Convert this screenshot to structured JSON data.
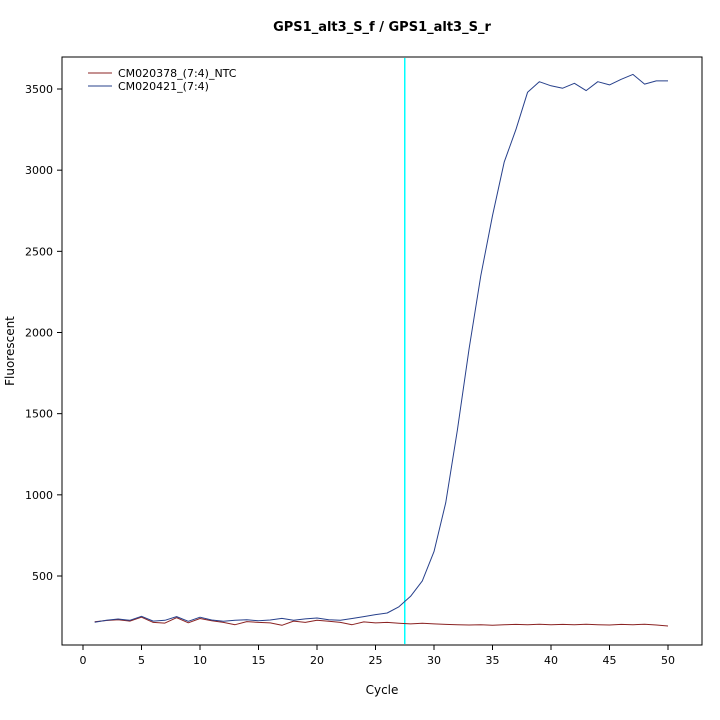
{
  "chart_data": {
    "type": "line",
    "title": "GPS1_alt3_S_f / GPS1_alt3_S_r",
    "xlabel": "Cycle",
    "ylabel": "Fluorescent",
    "xlim": [
      0,
      50
    ],
    "ylim": [
      150,
      3700
    ],
    "x_ticks": [
      0,
      5,
      10,
      15,
      20,
      25,
      30,
      35,
      40,
      45,
      50
    ],
    "y_ticks": [
      500,
      1000,
      1500,
      2000,
      2500,
      3000,
      3500
    ],
    "grid": false,
    "legend_position": "top-left",
    "background_color": "#ffffff",
    "frame_color": "#000000",
    "threshold_line": {
      "x": 27.5,
      "color": "#00ffff"
    },
    "x": [
      1,
      2,
      3,
      4,
      5,
      6,
      7,
      8,
      9,
      10,
      11,
      12,
      13,
      14,
      15,
      16,
      17,
      18,
      19,
      20,
      21,
      22,
      23,
      24,
      25,
      26,
      27,
      28,
      29,
      30,
      31,
      32,
      33,
      34,
      35,
      36,
      37,
      38,
      39,
      40,
      41,
      42,
      43,
      44,
      45,
      46,
      47,
      48,
      49,
      50
    ],
    "series": [
      {
        "name": "CM020378_(7:4)_NTC",
        "color": "#8b2323",
        "values": [
          218,
          226,
          230,
          222,
          246,
          214,
          210,
          243,
          212,
          238,
          224,
          214,
          200,
          219,
          214,
          211,
          196,
          222,
          214,
          228,
          221,
          214,
          200,
          217,
          211,
          214,
          209,
          205,
          209,
          205,
          202,
          200,
          198,
          200,
          197,
          200,
          202,
          200,
          203,
          200,
          202,
          200,
          203,
          200,
          198,
          202,
          200,
          203,
          198,
          192
        ]
      },
      {
        "name": "CM020421_(7:4)",
        "color": "#27408b",
        "values": [
          215,
          228,
          235,
          227,
          252,
          222,
          227,
          250,
          221,
          246,
          229,
          221,
          227,
          231,
          224,
          229,
          239,
          227,
          236,
          241,
          231,
          228,
          238,
          250,
          262,
          272,
          310,
          375,
          470,
          650,
          950,
          1400,
          1900,
          2350,
          2720,
          3050,
          3250,
          3480,
          3545,
          3520,
          3505,
          3535,
          3490,
          3545,
          3525,
          3560,
          3590,
          3530,
          3550,
          3550
        ]
      }
    ]
  }
}
